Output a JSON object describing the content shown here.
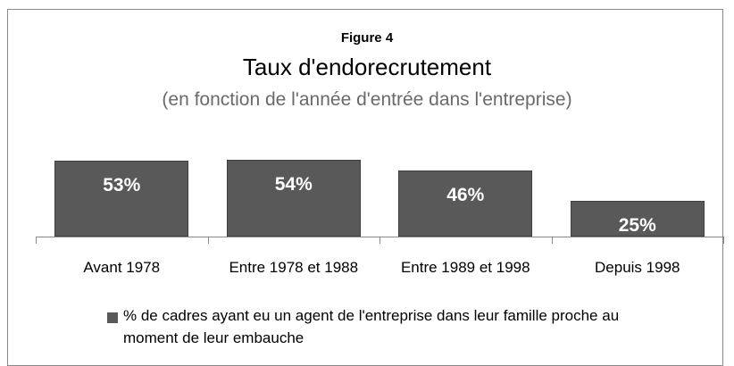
{
  "chart_data": {
    "type": "bar",
    "supertitle": "Figure 4",
    "title": "Taux d'endorecrutement",
    "subtitle": "(en fonction de l'année d'entrée dans l'entreprise)",
    "categories": [
      "Avant 1978",
      "Entre 1978 et 1988",
      "Entre 1989 et 1998",
      "Depuis 1998"
    ],
    "series": [
      {
        "name": "% de cadres ayant eu un agent de l'entreprise dans leur famille proche au moment de leur embauche",
        "color": "#595959",
        "values": [
          53,
          54,
          46,
          25
        ],
        "value_labels": [
          "53%",
          "54%",
          "46%",
          "25%"
        ]
      }
    ]
  }
}
